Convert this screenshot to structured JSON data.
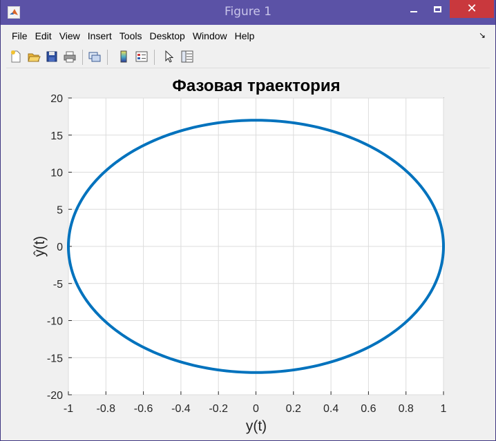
{
  "window": {
    "title": "Figure 1",
    "icon": "matlab-icon",
    "controls": [
      "minimize",
      "maximize",
      "close"
    ]
  },
  "menu": {
    "items": [
      {
        "label": "File"
      },
      {
        "label": "Edit"
      },
      {
        "label": "View"
      },
      {
        "label": "Insert"
      },
      {
        "label": "Tools"
      },
      {
        "label": "Desktop"
      },
      {
        "label": "Window"
      },
      {
        "label": "Help"
      }
    ],
    "dock_arrow": "↘"
  },
  "toolbar": {
    "buttons": [
      "new-figure-icon",
      "open-file-icon",
      "save-icon",
      "print-icon",
      "link-plot-icon",
      "insert-colorbar-icon",
      "insert-legend-icon",
      "edit-plot-icon",
      "property-inspector-icon"
    ]
  },
  "chart_data": {
    "type": "line",
    "title": "Фазовая траектория",
    "xlabel": "y(t)",
    "ylabel": "ŷ(t)",
    "xlim": [
      -1,
      1
    ],
    "ylim": [
      -20,
      20
    ],
    "xticks": [
      "-1",
      "-0.8",
      "-0.6",
      "-0.4",
      "-0.2",
      "0",
      "0.2",
      "0.4",
      "0.6",
      "0.8",
      "1"
    ],
    "yticks": [
      "20",
      "15",
      "10",
      "5",
      "0",
      "-5",
      "-10",
      "-15",
      "-20"
    ],
    "grid": true,
    "color": "#0072bd",
    "series": [
      {
        "shape": "ellipse",
        "x": [
          1,
          0.866,
          0.5,
          0,
          -0.5,
          -0.866,
          -1,
          -0.866,
          -0.5,
          0,
          0.5,
          0.866,
          1
        ],
        "y": [
          0,
          8.5,
          14.72,
          17,
          14.72,
          8.5,
          0,
          -8.5,
          -14.72,
          -17,
          -14.72,
          -8.5,
          0
        ]
      }
    ]
  }
}
